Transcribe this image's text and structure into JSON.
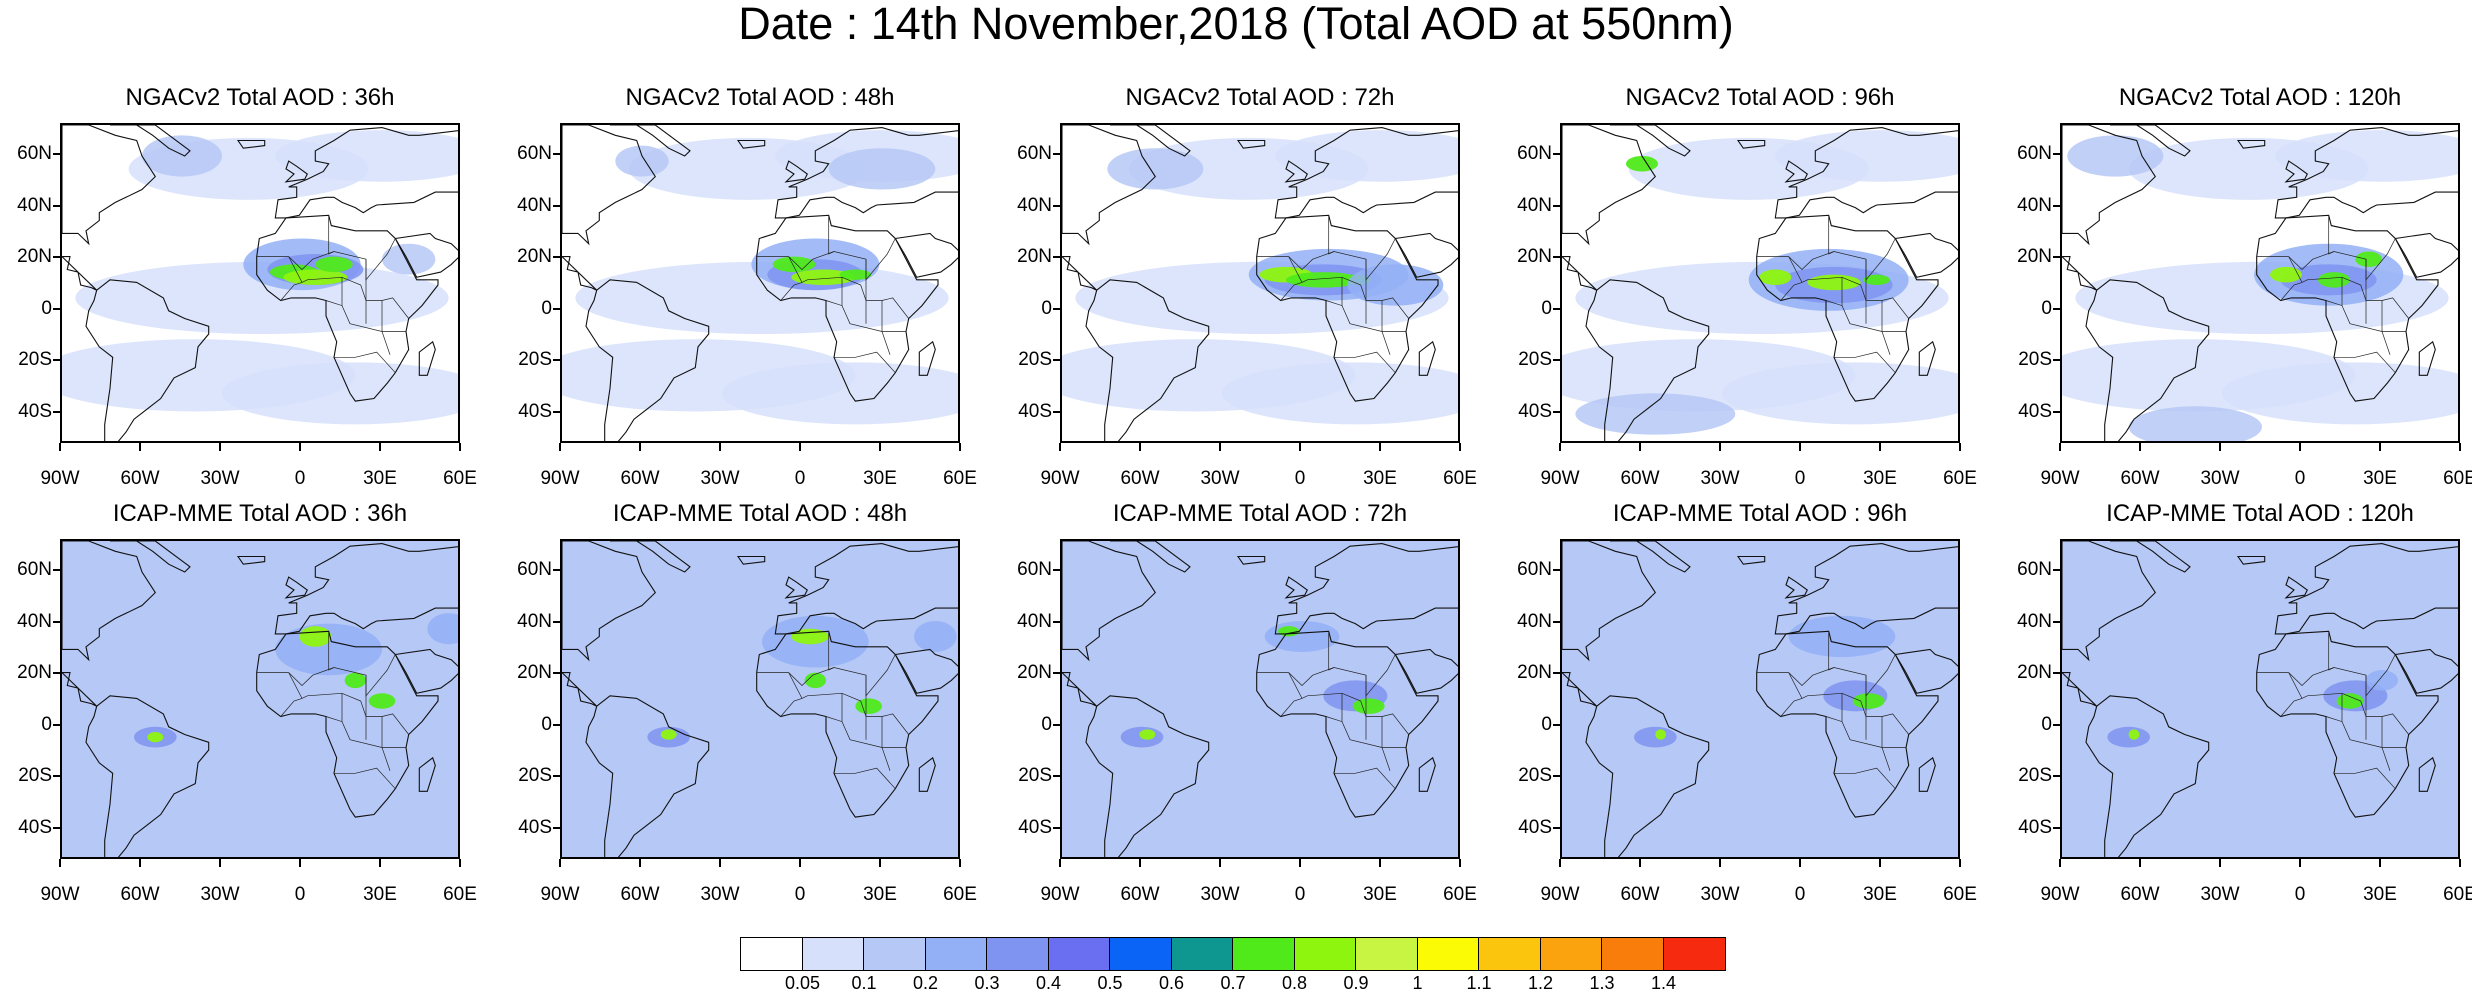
{
  "title": "Date : 14th November,2018 (Total AOD at 550nm)",
  "panels": [
    {
      "title": "NGACv2 Total AOD : 36h",
      "model": "NGACv2",
      "lead": "36h"
    },
    {
      "title": "NGACv2 Total AOD : 48h",
      "model": "NGACv2",
      "lead": "48h"
    },
    {
      "title": "NGACv2 Total AOD : 72h",
      "model": "NGACv2",
      "lead": "72h"
    },
    {
      "title": "NGACv2 Total AOD : 96h",
      "model": "NGACv2",
      "lead": "96h"
    },
    {
      "title": "NGACv2 Total AOD : 120h",
      "model": "NGACv2",
      "lead": "120h"
    },
    {
      "title": "ICAP-MME Total AOD : 36h",
      "model": "ICAP-MME",
      "lead": "36h"
    },
    {
      "title": "ICAP-MME Total AOD : 48h",
      "model": "ICAP-MME",
      "lead": "48h"
    },
    {
      "title": "ICAP-MME Total AOD : 72h",
      "model": "ICAP-MME",
      "lead": "72h"
    },
    {
      "title": "ICAP-MME Total AOD : 96h",
      "model": "ICAP-MME",
      "lead": "96h"
    },
    {
      "title": "ICAP-MME Total AOD : 120h",
      "model": "ICAP-MME",
      "lead": "120h"
    }
  ],
  "axes": {
    "lat_labels": [
      "60N",
      "40N",
      "20N",
      "0",
      "20S",
      "40S"
    ],
    "lat_values": [
      60,
      40,
      20,
      0,
      -20,
      -40
    ],
    "lat_range": [
      -52,
      72
    ],
    "lon_labels": [
      "90W",
      "60W",
      "30W",
      "0",
      "30E",
      "60E"
    ],
    "lon_values": [
      -90,
      -60,
      -30,
      0,
      30,
      60
    ],
    "lon_range": [
      -90,
      60
    ]
  },
  "colorbar": {
    "labels": [
      "0.05",
      "0.1",
      "0.2",
      "0.3",
      "0.4",
      "0.5",
      "0.6",
      "0.7",
      "0.8",
      "0.9",
      "1",
      "1.1",
      "1.2",
      "1.3",
      "1.4"
    ],
    "colors": [
      "#ffffff",
      "#d6e0fa",
      "#b6c8f6",
      "#93b0f6",
      "#7f93f0",
      "#6a6ef0",
      "#0a64f5",
      "#0e9690",
      "#50ea1a",
      "#8ef50f",
      "#c7f542",
      "#fbfb06",
      "#fbc40d",
      "#fba30f",
      "#f97d0a",
      "#f52a0f"
    ]
  }
}
